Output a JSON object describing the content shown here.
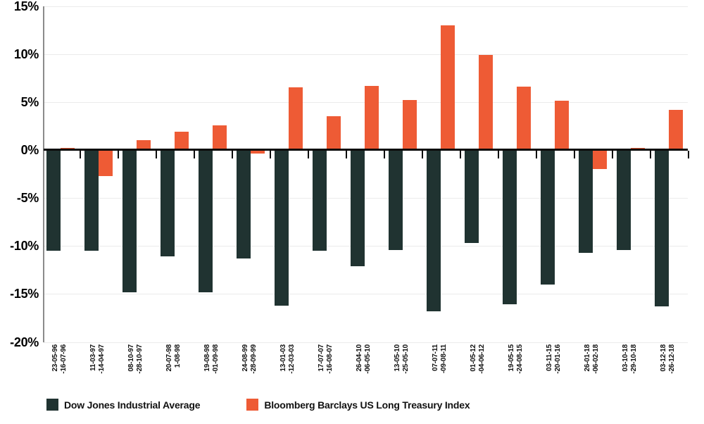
{
  "chart_data": {
    "type": "bar",
    "title": "",
    "orientation": "vertical-grouped",
    "categories": [
      {
        "line1": "23-05-96",
        "line2": "-16-07-96"
      },
      {
        "line1": "11-03-97",
        "line2": "-14-04-97"
      },
      {
        "line1": "08-10-97",
        "line2": "-28-10-97"
      },
      {
        "line1": "20-07-98",
        "line2": "1-08-98"
      },
      {
        "line1": "19-08-98",
        "line2": "-01-09-98"
      },
      {
        "line1": "24-08-99",
        "line2": "-28-09-99"
      },
      {
        "line1": "13-01-03",
        "line2": "-12-03-03"
      },
      {
        "line1": "17-07-07",
        "line2": "-16-08-07"
      },
      {
        "line1": "26-04-10",
        "line2": "-06-05-10"
      },
      {
        "line1": "13-05-10",
        "line2": "-25-05-10"
      },
      {
        "line1": "07-07-11",
        "line2": "-09-08-11"
      },
      {
        "line1": "01-05-12",
        "line2": "-04-06-12"
      },
      {
        "line1": "19-05-15",
        "line2": "-24-08-15"
      },
      {
        "line1": "03-11-15",
        "line2": "-20-01-16"
      },
      {
        "line1": "26-01-18",
        "line2": "-06-02-18"
      },
      {
        "line1": "03-10-18",
        "line2": "-29-10-18"
      },
      {
        "line1": "03-12-18",
        "line2": "-26-12-18"
      }
    ],
    "series": [
      {
        "name": "Dow Jones Industrial Average",
        "color": "#203331",
        "values": [
          -10.5,
          -10.5,
          -14.8,
          -11.1,
          -14.8,
          -11.3,
          -16.2,
          -10.5,
          -12.1,
          -10.4,
          -16.8,
          -9.7,
          -16.1,
          -14.0,
          -10.7,
          -10.4,
          -16.3
        ]
      },
      {
        "name": "Bloomberg Barclays US Long Treasury Index",
        "color": "#ee5b35",
        "values": [
          0.2,
          -2.7,
          1.0,
          1.9,
          2.6,
          -0.4,
          6.5,
          3.5,
          6.7,
          5.2,
          13.0,
          9.9,
          6.6,
          5.1,
          -2.0,
          0.2,
          4.2
        ]
      }
    ],
    "y_axis": {
      "unit": "%",
      "min": -20,
      "max": 15,
      "tick_step": 5,
      "ticks": [
        "15%",
        "10%",
        "5%",
        "0%",
        "-5%",
        "-10%",
        "-15%",
        "-20%"
      ]
    },
    "grid": true,
    "legend_position": "bottom-left",
    "colors": {
      "grid": "#ebebeb",
      "zero_axis": "#0b0b0b",
      "y_axis_line": "#8b8b8b",
      "text": "#000000"
    }
  }
}
